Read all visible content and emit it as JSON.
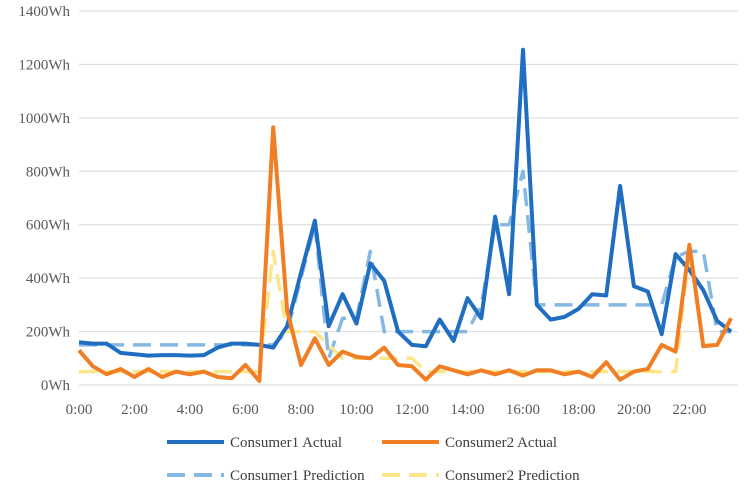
{
  "chart_data": {
    "type": "line",
    "title": "",
    "xlabel": "",
    "ylabel": "",
    "ylim": [
      0,
      1400
    ],
    "y_ticks": [
      "0Wh",
      "200Wh",
      "400Wh",
      "600Wh",
      "800Wh",
      "1000Wh",
      "1200Wh",
      "1400Wh"
    ],
    "y_tick_values": [
      0,
      200,
      400,
      600,
      800,
      1000,
      1200,
      1400
    ],
    "x_tick_labels": [
      "0:00",
      "2:00",
      "4:00",
      "6:00",
      "8:00",
      "10:00",
      "12:00",
      "14:00",
      "16:00",
      "18:00",
      "20:00",
      "22:00"
    ],
    "x_tick_hours": [
      0,
      2,
      4,
      6,
      8,
      10,
      12,
      14,
      16,
      18,
      20,
      22
    ],
    "xlim_hours": [
      0,
      23.75
    ],
    "grid": "horizontal",
    "legend_placement": "bottom",
    "series": [
      {
        "name": "Consumer1 Actual",
        "color": "#1f6ec1",
        "dash": "solid",
        "points": [
          [
            0,
            160
          ],
          [
            0.5,
            155
          ],
          [
            1,
            155
          ],
          [
            1.5,
            120
          ],
          [
            2,
            115
          ],
          [
            2.5,
            110
          ],
          [
            3,
            112
          ],
          [
            3.5,
            112
          ],
          [
            4,
            110
          ],
          [
            4.5,
            112
          ],
          [
            5,
            140
          ],
          [
            5.5,
            155
          ],
          [
            6,
            155
          ],
          [
            6.5,
            150
          ],
          [
            7,
            140
          ],
          [
            7.5,
            220
          ],
          [
            8,
            420
          ],
          [
            8.5,
            615
          ],
          [
            9,
            220
          ],
          [
            9.5,
            340
          ],
          [
            10,
            230
          ],
          [
            10.5,
            455
          ],
          [
            11,
            390
          ],
          [
            11.5,
            200
          ],
          [
            12,
            150
          ],
          [
            12.5,
            145
          ],
          [
            13,
            245
          ],
          [
            13.5,
            165
          ],
          [
            14,
            325
          ],
          [
            14.5,
            250
          ],
          [
            15,
            630
          ],
          [
            15.5,
            340
          ],
          [
            16,
            1255
          ],
          [
            16.5,
            300
          ],
          [
            17,
            245
          ],
          [
            17.5,
            255
          ],
          [
            18,
            285
          ],
          [
            18.5,
            340
          ],
          [
            19,
            335
          ],
          [
            19.5,
            745
          ],
          [
            20,
            370
          ],
          [
            20.5,
            350
          ],
          [
            21,
            190
          ],
          [
            21.5,
            490
          ],
          [
            22,
            430
          ],
          [
            22.5,
            355
          ],
          [
            23,
            240
          ],
          [
            23.5,
            200
          ]
        ]
      },
      {
        "name": "Consumer2 Actual",
        "color": "#f07e25",
        "dash": "solid",
        "points": [
          [
            0,
            130
          ],
          [
            0.5,
            70
          ],
          [
            1,
            40
          ],
          [
            1.5,
            60
          ],
          [
            2,
            30
          ],
          [
            2.5,
            60
          ],
          [
            3,
            30
          ],
          [
            3.5,
            50
          ],
          [
            4,
            40
          ],
          [
            4.5,
            50
          ],
          [
            5,
            30
          ],
          [
            5.5,
            25
          ],
          [
            6,
            75
          ],
          [
            6.5,
            15
          ],
          [
            7,
            965
          ],
          [
            7.5,
            280
          ],
          [
            8,
            75
          ],
          [
            8.5,
            175
          ],
          [
            9,
            75
          ],
          [
            9.5,
            125
          ],
          [
            10,
            105
          ],
          [
            10.5,
            100
          ],
          [
            11,
            140
          ],
          [
            11.5,
            75
          ],
          [
            12,
            70
          ],
          [
            12.5,
            20
          ],
          [
            13,
            70
          ],
          [
            13.5,
            55
          ],
          [
            14,
            40
          ],
          [
            14.5,
            55
          ],
          [
            15,
            40
          ],
          [
            15.5,
            55
          ],
          [
            16,
            35
          ],
          [
            16.5,
            55
          ],
          [
            17,
            55
          ],
          [
            17.5,
            40
          ],
          [
            18,
            50
          ],
          [
            18.5,
            30
          ],
          [
            19,
            85
          ],
          [
            19.5,
            20
          ],
          [
            20,
            50
          ],
          [
            20.5,
            60
          ],
          [
            21,
            150
          ],
          [
            21.5,
            125
          ],
          [
            22,
            525
          ],
          [
            22.5,
            145
          ],
          [
            23,
            150
          ],
          [
            23.5,
            250
          ]
        ]
      },
      {
        "name": "Consumer1 Prediction",
        "color": "#85b8e3",
        "dash": "dashed",
        "points": [
          [
            0,
            150
          ],
          [
            1,
            150
          ],
          [
            2,
            150
          ],
          [
            3,
            150
          ],
          [
            4,
            150
          ],
          [
            5,
            150
          ],
          [
            6,
            150
          ],
          [
            7,
            150
          ],
          [
            7.5,
            200
          ],
          [
            8,
            400
          ],
          [
            8.5,
            600
          ],
          [
            9,
            100
          ],
          [
            9.5,
            250
          ],
          [
            10,
            250
          ],
          [
            10.5,
            500
          ],
          [
            11,
            200
          ],
          [
            12,
            200
          ],
          [
            13,
            200
          ],
          [
            14,
            200
          ],
          [
            14.5,
            300
          ],
          [
            15,
            600
          ],
          [
            15.5,
            600
          ],
          [
            16,
            800
          ],
          [
            16.5,
            300
          ],
          [
            17,
            300
          ],
          [
            18,
            300
          ],
          [
            19,
            300
          ],
          [
            20,
            300
          ],
          [
            21,
            300
          ],
          [
            21.5,
            480
          ],
          [
            22,
            500
          ],
          [
            22.5,
            500
          ],
          [
            23,
            200
          ],
          [
            23.5,
            200
          ]
        ]
      },
      {
        "name": "Consumer2 Prediction",
        "color": "#fde68a",
        "dash": "dashed",
        "points": [
          [
            0,
            50
          ],
          [
            1,
            50
          ],
          [
            2,
            50
          ],
          [
            3,
            50
          ],
          [
            4,
            50
          ],
          [
            5,
            50
          ],
          [
            6,
            50
          ],
          [
            6.5,
            50
          ],
          [
            7,
            500
          ],
          [
            7.5,
            200
          ],
          [
            8,
            200
          ],
          [
            8.5,
            200
          ],
          [
            9,
            150
          ],
          [
            9.5,
            100
          ],
          [
            10,
            100
          ],
          [
            11,
            100
          ],
          [
            12,
            100
          ],
          [
            12.5,
            50
          ],
          [
            13,
            50
          ],
          [
            14,
            50
          ],
          [
            15,
            50
          ],
          [
            16,
            50
          ],
          [
            17,
            50
          ],
          [
            18,
            50
          ],
          [
            19,
            50
          ],
          [
            20,
            50
          ],
          [
            21,
            50
          ],
          [
            21.5,
            50
          ],
          [
            22,
            500
          ],
          [
            22.5,
            150
          ],
          [
            23,
            150
          ],
          [
            23.5,
            250
          ]
        ]
      }
    ]
  }
}
